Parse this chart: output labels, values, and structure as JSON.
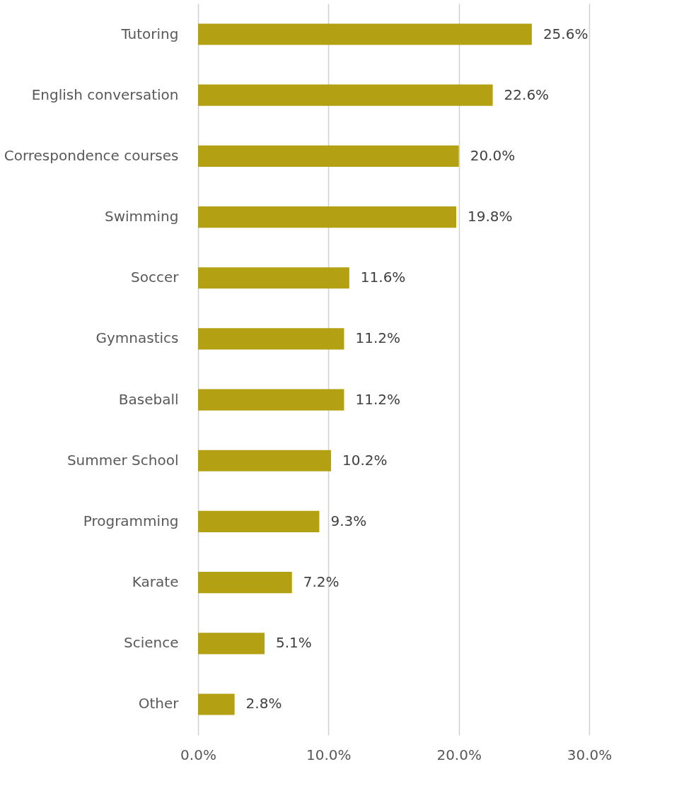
{
  "chart_data": {
    "type": "bar",
    "orientation": "horizontal",
    "categories": [
      "Tutoring",
      "English conversation",
      "Correspondence courses",
      "Swimming",
      "Soccer",
      "Gymnastics",
      "Baseball",
      "Summer School",
      "Programming",
      "Karate",
      "Science",
      "Other"
    ],
    "values": [
      25.6,
      22.6,
      20.0,
      19.8,
      11.6,
      11.2,
      11.2,
      10.2,
      9.3,
      7.2,
      5.1,
      2.8
    ],
    "value_labels": [
      "25.6%",
      "22.6%",
      "20.0%",
      "19.8%",
      "11.6%",
      "11.2%",
      "11.2%",
      "10.2%",
      "9.3%",
      "7.2%",
      "5.1%",
      "2.8%"
    ],
    "color": "#b3a113",
    "xlim": [
      0,
      30
    ],
    "xticks": [
      {
        "value": 0,
        "label": "0.0%"
      },
      {
        "value": 10,
        "label": "10.0%"
      },
      {
        "value": 20,
        "label": "20.0%"
      },
      {
        "value": 30,
        "label": "30.0%"
      }
    ],
    "grid": "x"
  }
}
